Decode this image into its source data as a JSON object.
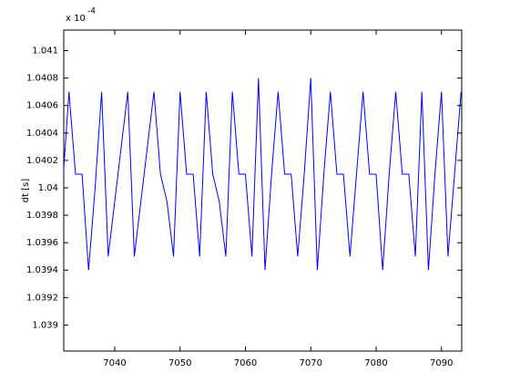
{
  "chart_data": {
    "type": "line",
    "ylabel": "dt [s]",
    "y_multiplier": "x 10",
    "y_multiplier_exponent": "-4",
    "x": [
      7032,
      7033,
      7034,
      7035,
      7036,
      7037,
      7038,
      7039,
      7040,
      7041,
      7042,
      7043,
      7044,
      7045,
      7046,
      7047,
      7048,
      7049,
      7050,
      7051,
      7052,
      7053,
      7054,
      7055,
      7056,
      7057,
      7058,
      7059,
      7060,
      7061,
      7062,
      7063,
      7064,
      7065,
      7066,
      7067,
      7068,
      7069,
      7070,
      7071,
      7072,
      7073,
      7074,
      7075,
      7076,
      7077,
      7078,
      7079,
      7080,
      7081,
      7082,
      7083,
      7084,
      7085,
      7086,
      7087,
      7088,
      7089,
      7090,
      7091,
      7092,
      7093
    ],
    "series": [
      {
        "color": "#0000ff",
        "values": [
          1.04,
          1.0407,
          1.0401,
          1.0401,
          1.0394,
          1.04,
          1.0407,
          1.0395,
          1.0399,
          1.0403,
          1.0407,
          1.0395,
          1.0399,
          1.0403,
          1.0407,
          1.0401,
          1.0399,
          1.0395,
          1.0407,
          1.0401,
          1.0401,
          1.0395,
          1.0407,
          1.0401,
          1.0399,
          1.0395,
          1.0407,
          1.0401,
          1.0401,
          1.0395,
          1.0408,
          1.0394,
          1.0401,
          1.0407,
          1.0401,
          1.0401,
          1.0395,
          1.0401,
          1.0408,
          1.0394,
          1.0401,
          1.0407,
          1.0401,
          1.0401,
          1.0395,
          1.0401,
          1.0407,
          1.0401,
          1.0401,
          1.0394,
          1.0401,
          1.0407,
          1.0401,
          1.0401,
          1.0395,
          1.0407,
          1.0394,
          1.0401,
          1.0407,
          1.0395,
          1.0401,
          1.0407
        ]
      }
    ],
    "xlim": [
      7032.2,
      7093.1
    ],
    "xticks": [
      7040,
      7050,
      7060,
      7070,
      7080,
      7090
    ],
    "ylim": [
      1.03881,
      1.04115
    ],
    "yticks": [
      1.039,
      1.0392,
      1.0394,
      1.0396,
      1.0398,
      1.04,
      1.0402,
      1.0404,
      1.0406,
      1.0408,
      1.041
    ],
    "grid": false
  }
}
